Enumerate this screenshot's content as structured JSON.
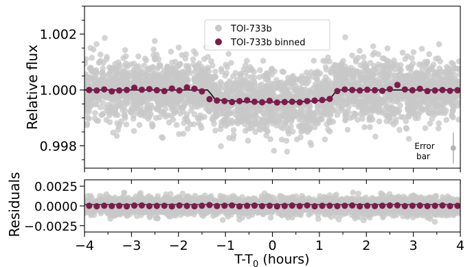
{
  "chart_data": [
    {
      "type": "scatter",
      "panel": "light-curve",
      "xlim": [
        -4,
        4
      ],
      "ylim": [
        0.9972,
        1.003
      ],
      "ylabel": "Relative flux",
      "yticks": [
        0.998,
        1.0,
        1.002
      ],
      "ytick_labels": [
        "0.998",
        "1.000",
        "1.002"
      ],
      "legend": {
        "placement": "top-center",
        "entries": [
          "TOI-733b",
          "TOI-733b binned"
        ]
      },
      "model": {
        "x": [
          -4.0,
          -1.38,
          -1.3,
          -1.22,
          -1.0,
          -0.6,
          -0.2,
          0.2,
          0.6,
          1.0,
          1.22,
          1.3,
          1.38,
          4.0
        ],
        "y": [
          1.0,
          1.0,
          0.99984,
          0.99966,
          0.99962,
          0.99958,
          0.99957,
          0.99957,
          0.99958,
          0.99962,
          0.99966,
          0.99984,
          1.0,
          1.0
        ]
      },
      "series": [
        {
          "name": "TOI-733b",
          "color": "#c8c8c8",
          "n_points": 3000,
          "noise_sigma": 0.00055
        },
        {
          "name": "TOI-733b binned",
          "color": "#7d1b4c",
          "x": [
            -3.9,
            -3.74,
            -3.58,
            -3.42,
            -3.26,
            -3.1,
            -2.94,
            -2.78,
            -2.62,
            -2.46,
            -2.3,
            -2.14,
            -1.98,
            -1.82,
            -1.66,
            -1.5,
            -1.34,
            -1.18,
            -1.02,
            -0.86,
            -0.7,
            -0.54,
            -0.38,
            -0.22,
            -0.06,
            0.1,
            0.26,
            0.42,
            0.58,
            0.74,
            0.9,
            1.06,
            1.22,
            1.38,
            1.54,
            1.7,
            1.86,
            2.02,
            2.18,
            2.34,
            2.5,
            2.66,
            2.82,
            2.98,
            3.14,
            3.3,
            3.46,
            3.62,
            3.78,
            3.94
          ],
          "y": [
            1.0,
            0.99998,
            1.00002,
            0.99995,
            0.99998,
            1.0,
            1.00008,
            1.00001,
            1.00003,
            0.99999,
            0.99996,
            1.00005,
            0.99998,
            1.00009,
            1.00004,
            0.99995,
            0.99967,
            0.99962,
            0.9996,
            0.99957,
            0.9996,
            0.99963,
            0.99958,
            0.99956,
            0.99961,
            0.99955,
            0.99957,
            0.99958,
            0.99956,
            0.9996,
            0.99962,
            0.99964,
            0.99968,
            0.99996,
            1.00002,
            1.0,
            0.99998,
            1.00001,
            0.99999,
            0.99997,
            1.00003,
            1.00018,
            1.00002,
            0.99999,
            1.00004,
            0.99996,
            0.99998,
            1.0,
            0.99997,
            0.99999
          ]
        }
      ],
      "error_bar": {
        "label": "Error\nbar",
        "x": 3.85,
        "y": 0.99792,
        "yerr": 0.00056,
        "color": "#b4b4b4"
      }
    },
    {
      "type": "scatter",
      "panel": "residuals",
      "xlim": [
        -4,
        4
      ],
      "ylim": [
        -0.0033,
        0.0033
      ],
      "xlabel": "T-T",
      "xlabel_sub": "0",
      "xlabel_suffix": " (hours)",
      "ylabel": "Residuals",
      "xticks": [
        -4,
        -3,
        -2,
        -1,
        0,
        1,
        2,
        3,
        4
      ],
      "xtick_labels": [
        "−4",
        "−3",
        "−2",
        "−1",
        "0",
        "1",
        "2",
        "3",
        "4"
      ],
      "yticks": [
        -0.0025,
        0.0,
        0.0025
      ],
      "ytick_labels": [
        "−0.0025",
        "0.0000",
        "0.0025"
      ],
      "series": [
        {
          "name": "residuals",
          "color": "#c8c8c8",
          "n_points": 3000,
          "noise_sigma": 0.00055
        },
        {
          "name": "binned residuals",
          "color": "#7d1b4c",
          "x": [
            -3.9,
            -3.74,
            -3.58,
            -3.42,
            -3.26,
            -3.1,
            -2.94,
            -2.78,
            -2.62,
            -2.46,
            -2.3,
            -2.14,
            -1.98,
            -1.82,
            -1.66,
            -1.5,
            -1.34,
            -1.18,
            -1.02,
            -0.86,
            -0.7,
            -0.54,
            -0.38,
            -0.22,
            -0.06,
            0.1,
            0.26,
            0.42,
            0.58,
            0.74,
            0.9,
            1.06,
            1.22,
            1.38,
            1.54,
            1.7,
            1.86,
            2.02,
            2.18,
            2.34,
            2.5,
            2.66,
            2.82,
            2.98,
            3.14,
            3.3,
            3.46,
            3.62,
            3.78,
            3.94
          ],
          "y": [
            2e-05,
            -4e-05,
            3e-05,
            -2e-05,
            1e-05,
            -5e-05,
            4e-05,
            6e-05,
            -3e-05,
            0.0,
            2e-05,
            -6e-05,
            5e-05,
            0.0,
            -4e-05,
            3e-05,
            0.0001,
            -2e-05,
            3e-05,
            6e-05,
            -5e-05,
            1e-05,
            4e-05,
            -3e-05,
            2e-05,
            -5e-05,
            0.0,
            4e-05,
            -2e-05,
            6e-05,
            -4e-05,
            1e-05,
            3e-05,
            -3e-05,
            2e-05,
            5e-05,
            -4e-05,
            1e-05,
            -2e-05,
            3e-05,
            5e-05,
            7e-05,
            -3e-05,
            2e-05,
            4e-05,
            -3e-05,
            1e-05,
            5e-05,
            -2e-05,
            1e-05
          ]
        }
      ]
    }
  ]
}
